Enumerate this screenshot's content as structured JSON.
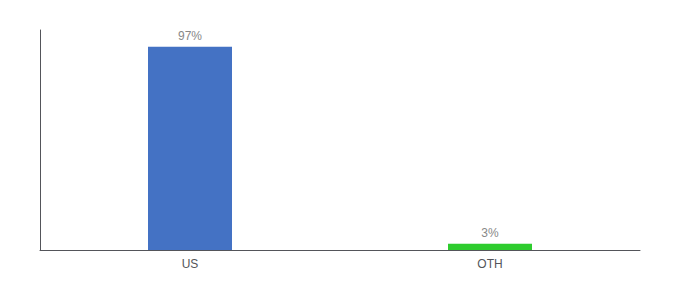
{
  "chart_data": {
    "type": "bar",
    "categories": [
      "US",
      "OTH"
    ],
    "values": [
      97,
      3
    ],
    "value_labels": [
      "97%",
      "3%"
    ],
    "colors": [
      "#4472c4",
      "#2ecc2e"
    ],
    "ylim": [
      0,
      105
    ],
    "data_labels": true,
    "tick_labels": "x",
    "grid": false
  }
}
